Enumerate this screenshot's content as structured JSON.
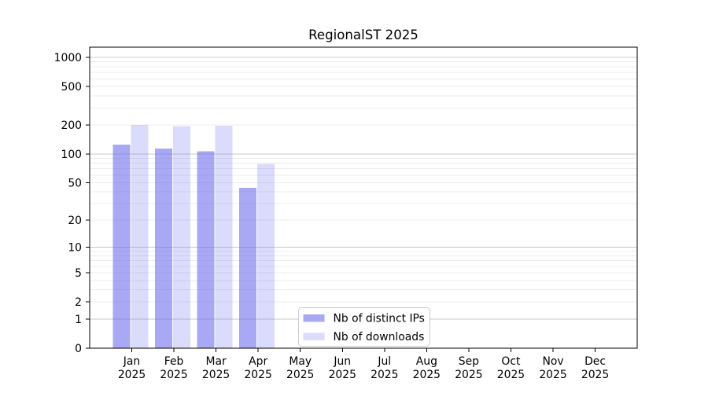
{
  "title": "RegionalST 2025",
  "chart_data": {
    "type": "bar",
    "title": "RegionalST 2025",
    "scale": "log1p",
    "categories": [
      "Jan",
      "Feb",
      "Mar",
      "Apr",
      "May",
      "Jun",
      "Jul",
      "Aug",
      "Sep",
      "Oct",
      "Nov",
      "Dec"
    ],
    "x_year": "2025",
    "series": [
      {
        "name": "Nb of distinct IPs",
        "color": "#6e6eee",
        "alpha": 0.6,
        "values": [
          125,
          114,
          106,
          44,
          0,
          0,
          0,
          0,
          0,
          0,
          0,
          0
        ]
      },
      {
        "name": "Nb of downloads",
        "color": "#6e6eee",
        "alpha": 0.25,
        "values": [
          200,
          194,
          196,
          79,
          0,
          0,
          0,
          0,
          0,
          0,
          0,
          0
        ]
      }
    ],
    "y_ticks": [
      0,
      1,
      2,
      5,
      10,
      20,
      50,
      100,
      200,
      500,
      1000
    ],
    "ylim": [
      0,
      1270
    ],
    "grid": true,
    "grid_major_color": "#c8c8c8",
    "grid_minor_color": "#ececec",
    "axis_color": "#000000",
    "legend_position": "lower center",
    "legend_border_color": "#cccccc",
    "xlabel": "",
    "ylabel": ""
  }
}
